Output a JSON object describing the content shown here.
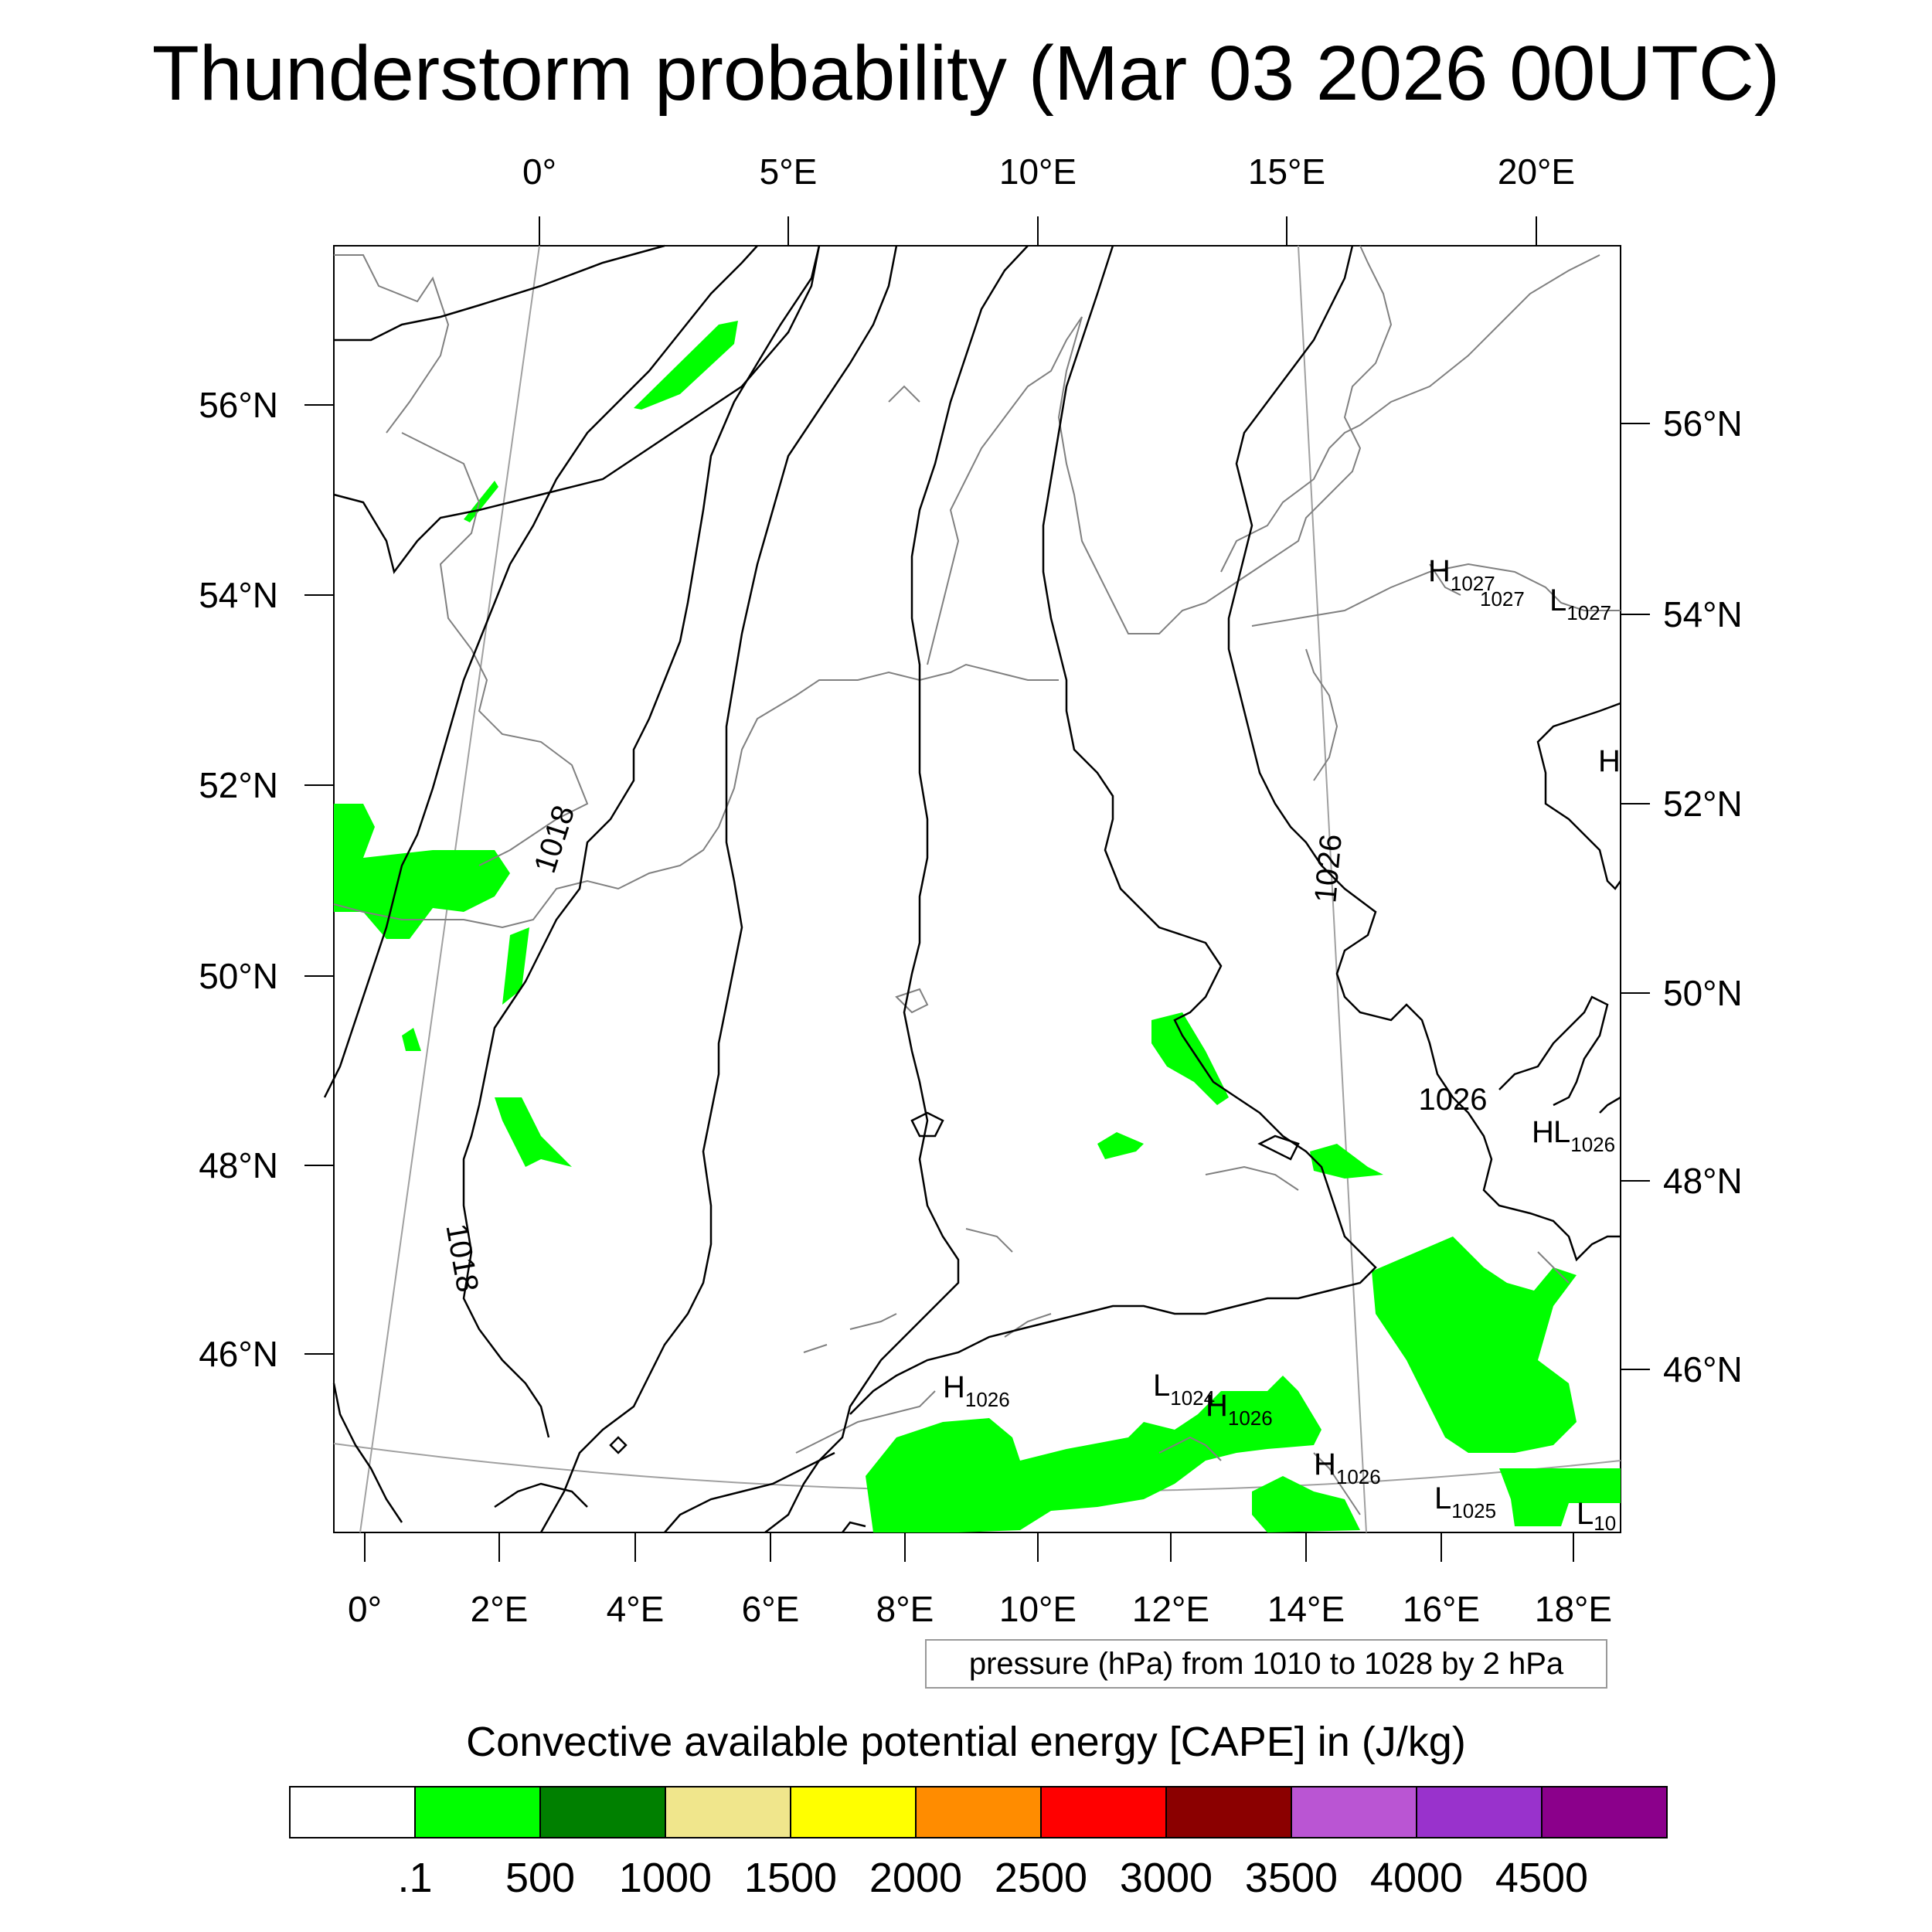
{
  "title": "Thunderstorm probability (Mar 03 2026 00UTC)",
  "top_lon_labels": [
    "0°",
    "5°E",
    "10°E",
    "15°E",
    "20°E"
  ],
  "bottom_lon_labels": [
    "0°",
    "2°E",
    "4°E",
    "6°E",
    "8°E",
    "10°E",
    "12°E",
    "14°E",
    "16°E",
    "18°E"
  ],
  "left_lat_labels": [
    "56°N",
    "54°N",
    "52°N",
    "50°N",
    "48°N",
    "46°N"
  ],
  "right_lat_labels": [
    "56°N",
    "54°N",
    "52°N",
    "50°N",
    "48°N",
    "46°N"
  ],
  "contour_labels": [
    {
      "text": "1018",
      "angle": -72
    },
    {
      "text": "1018",
      "angle": 80
    },
    {
      "text": "1026",
      "angle": -85
    },
    {
      "text": "1026",
      "angle": 0
    }
  ],
  "pressure_centers": [
    {
      "letter": "H",
      "value": "1027"
    },
    {
      "letter": "",
      "value": "1027"
    },
    {
      "letter": "L",
      "value": "1027"
    },
    {
      "letter": "H",
      "value": ""
    },
    {
      "letter": "H",
      "value": ""
    },
    {
      "letter": "L",
      "value": "1026"
    },
    {
      "letter": "H",
      "value": "1026"
    },
    {
      "letter": "L",
      "value": "1024"
    },
    {
      "letter": "H",
      "value": "1026"
    },
    {
      "letter": "H",
      "value": "1026"
    },
    {
      "letter": "L",
      "value": "1025"
    },
    {
      "letter": "L",
      "value": "10"
    }
  ],
  "info_box_text": "pressure (hPa) from 1010 to 1028 by 2 hPa",
  "colorbar": {
    "title": "Convective available potential energy [CAPE] in (J/kg)",
    "colors": [
      "#ffffff",
      "#00ff00",
      "#008000",
      "#f0e68c",
      "#ffff00",
      "#ff8c00",
      "#ff0000",
      "#8b0000",
      "#ba55d3",
      "#9932cc",
      "#8b008b"
    ],
    "labels": [
      ".1",
      "500",
      "1000",
      "1500",
      "2000",
      "2500",
      "3000",
      "3500",
      "4000",
      "4500"
    ]
  },
  "colors": {
    "cape_fill": "#00ff00",
    "coastline": "#808080",
    "contour": "#000000",
    "graticule": "#a0a0a0"
  }
}
